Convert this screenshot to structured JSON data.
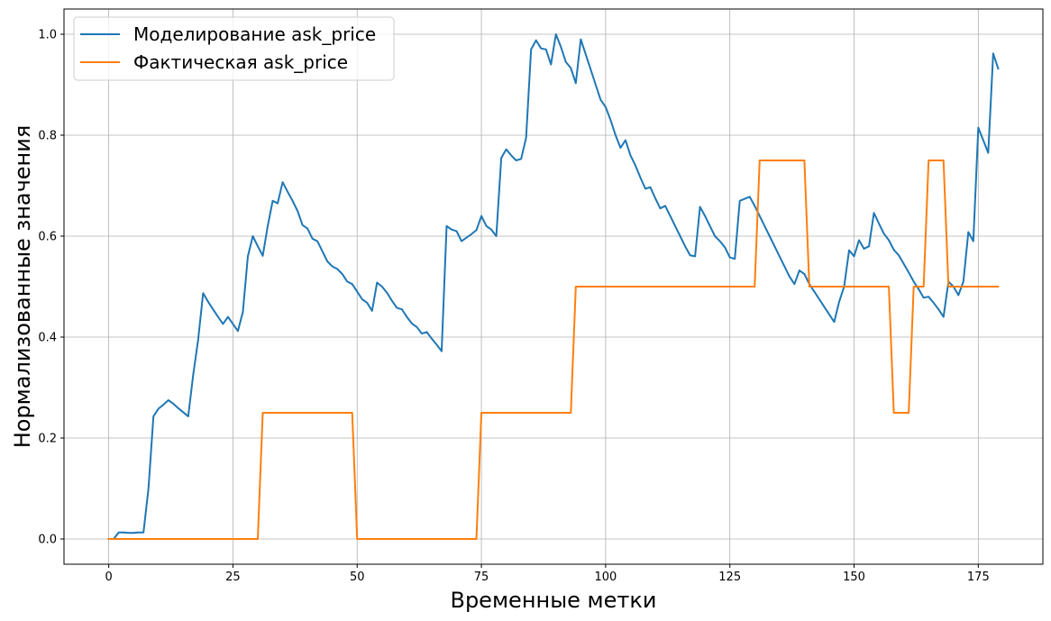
{
  "chart_data": {
    "type": "line",
    "xlabel": "Временные метки",
    "ylabel": "Нормализованные значения",
    "xlim": [
      -9,
      188
    ],
    "ylim": [
      -0.05,
      1.05
    ],
    "xticks": [
      0,
      25,
      50,
      75,
      100,
      125,
      150,
      175
    ],
    "xtick_labels": [
      "0",
      "25",
      "50",
      "75",
      "100",
      "125",
      "150",
      "175"
    ],
    "yticks": [
      0.0,
      0.2,
      0.4,
      0.6,
      0.8,
      1.0
    ],
    "ytick_labels": [
      "0.0",
      "0.2",
      "0.4",
      "0.6",
      "0.8",
      "1.0"
    ],
    "grid": true,
    "legend_position": "top-left",
    "series": [
      {
        "name": "Моделирование ask_price",
        "color": "#1f77b4",
        "x": [
          0,
          1,
          2,
          3,
          4,
          5,
          6,
          7,
          8,
          9,
          10,
          11,
          12,
          13,
          14,
          15,
          16,
          17,
          18,
          19,
          20,
          21,
          22,
          23,
          24,
          25,
          26,
          27,
          28,
          29,
          30,
          31,
          32,
          33,
          34,
          35,
          36,
          37,
          38,
          39,
          40,
          41,
          42,
          43,
          44,
          45,
          46,
          47,
          48,
          49,
          50,
          51,
          52,
          53,
          54,
          55,
          56,
          57,
          58,
          59,
          60,
          61,
          62,
          63,
          64,
          65,
          66,
          67,
          68,
          69,
          70,
          71,
          72,
          73,
          74,
          75,
          76,
          77,
          78,
          79,
          80,
          81,
          82,
          83,
          84,
          85,
          86,
          87,
          88,
          89,
          90,
          91,
          92,
          93,
          94,
          95,
          96,
          97,
          98,
          99,
          100,
          101,
          102,
          103,
          104,
          105,
          106,
          107,
          108,
          109,
          110,
          111,
          112,
          113,
          114,
          115,
          116,
          117,
          118,
          119,
          120,
          121,
          122,
          123,
          124,
          125,
          126,
          127,
          128,
          129,
          130,
          131,
          132,
          133,
          134,
          135,
          136,
          137,
          138,
          139,
          140,
          141,
          142,
          143,
          144,
          145,
          146,
          147,
          148,
          149,
          150,
          151,
          152,
          153,
          154,
          155,
          156,
          157,
          158,
          159,
          160,
          161,
          162,
          163,
          164,
          165,
          166,
          167,
          168,
          169,
          170,
          171,
          172,
          173,
          174,
          175,
          176,
          177,
          178,
          179
        ],
        "values": [
          0.0,
          0.0,
          0.013,
          0.013,
          0.012,
          0.012,
          0.013,
          0.013,
          0.1,
          0.243,
          0.258,
          0.266,
          0.275,
          0.268,
          0.259,
          0.251,
          0.243,
          0.325,
          0.395,
          0.487,
          0.47,
          0.455,
          0.44,
          0.426,
          0.44,
          0.426,
          0.412,
          0.45,
          0.56,
          0.6,
          0.58,
          0.561,
          0.62,
          0.67,
          0.665,
          0.707,
          0.688,
          0.67,
          0.65,
          0.622,
          0.615,
          0.595,
          0.59,
          0.57,
          0.55,
          0.54,
          0.535,
          0.525,
          0.51,
          0.505,
          0.49,
          0.475,
          0.468,
          0.452,
          0.508,
          0.5,
          0.488,
          0.472,
          0.458,
          0.455,
          0.44,
          0.427,
          0.42,
          0.407,
          0.41,
          0.397,
          0.385,
          0.372,
          0.62,
          0.613,
          0.61,
          0.59,
          0.597,
          0.604,
          0.612,
          0.64,
          0.62,
          0.613,
          0.6,
          0.755,
          0.772,
          0.76,
          0.75,
          0.753,
          0.795,
          0.97,
          0.988,
          0.972,
          0.97,
          0.94,
          1.0,
          0.975,
          0.945,
          0.933,
          0.903,
          0.99,
          0.96,
          0.93,
          0.9,
          0.87,
          0.856,
          0.83,
          0.8,
          0.775,
          0.79,
          0.76,
          0.74,
          0.716,
          0.694,
          0.697,
          0.675,
          0.655,
          0.66,
          0.64,
          0.62,
          0.6,
          0.58,
          0.562,
          0.56,
          0.658,
          0.64,
          0.62,
          0.6,
          0.59,
          0.578,
          0.558,
          0.555,
          0.67,
          0.674,
          0.678,
          0.66,
          0.64,
          0.62,
          0.6,
          0.58,
          0.56,
          0.54,
          0.52,
          0.505,
          0.532,
          0.525,
          0.505,
          0.49,
          0.475,
          0.46,
          0.445,
          0.43,
          0.47,
          0.5,
          0.572,
          0.56,
          0.592,
          0.575,
          0.58,
          0.646,
          0.625,
          0.605,
          0.592,
          0.573,
          0.562,
          0.545,
          0.528,
          0.51,
          0.495,
          0.478,
          0.48,
          0.468,
          0.455,
          0.44,
          0.51,
          0.5,
          0.483,
          0.51,
          0.608,
          0.59,
          0.815,
          0.79,
          0.765,
          0.962,
          0.932
        ]
      },
      {
        "name": "Фактическая ask_price",
        "color": "#ff7f0e",
        "x": [
          0,
          30,
          31,
          49,
          50,
          74,
          75,
          93,
          94,
          130,
          131,
          140,
          141,
          157,
          158,
          161,
          162,
          164,
          165,
          168,
          169,
          179
        ],
        "values": [
          0,
          0,
          0.25,
          0.25,
          0,
          0,
          0.25,
          0.25,
          0.5,
          0.5,
          0.75,
          0.75,
          0.5,
          0.5,
          0.25,
          0.25,
          0.5,
          0.5,
          0.75,
          0.75,
          0.5,
          0.5
        ]
      }
    ]
  }
}
